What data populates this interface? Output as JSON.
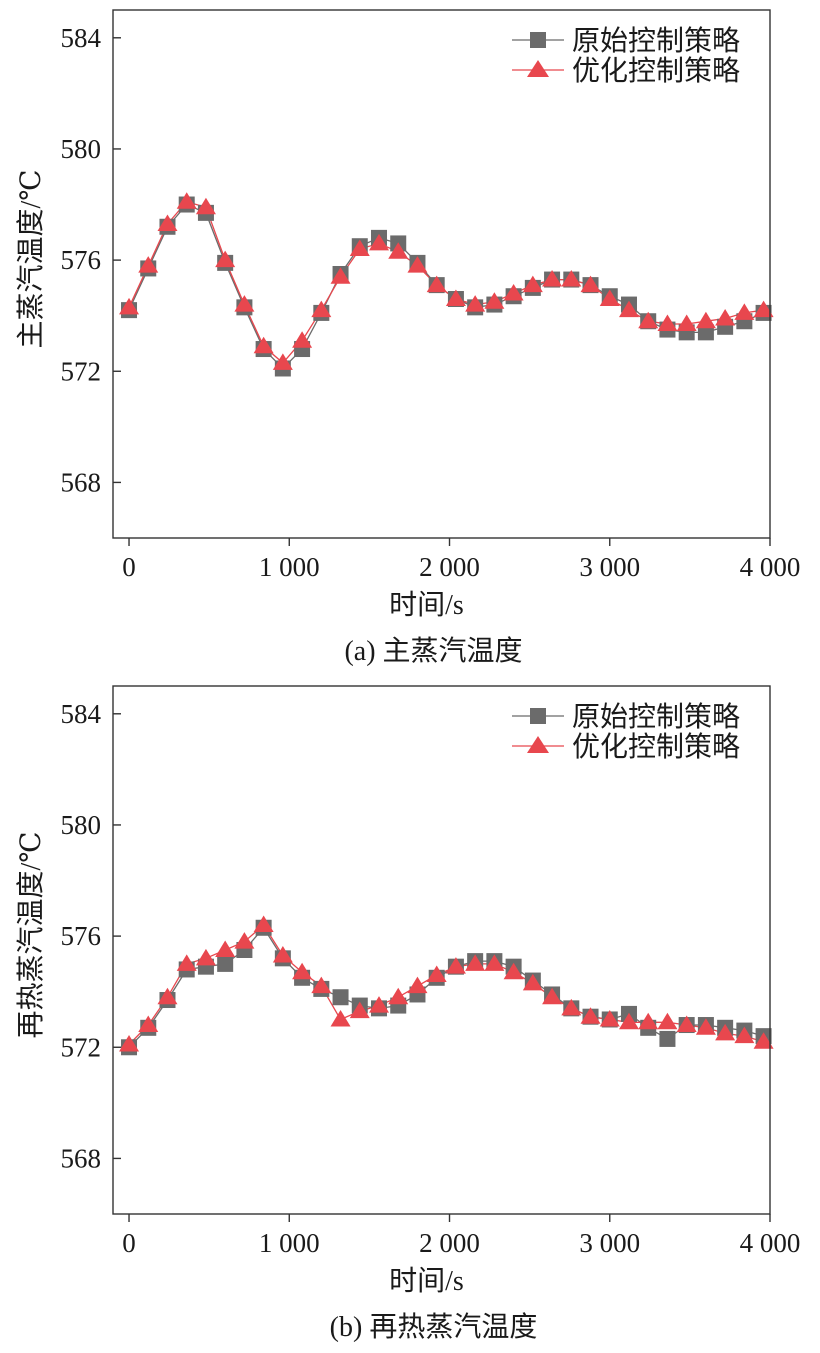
{
  "chart_data": [
    {
      "type": "line",
      "caption": "(a) 主蒸汽温度",
      "xlabel": "时间/s",
      "ylabel": "主蒸汽温度/℃",
      "xlim": [
        -100,
        4000
      ],
      "ylim": [
        566,
        585
      ],
      "xticks": [
        0,
        1000,
        2000,
        3000,
        4000
      ],
      "xtick_labels": [
        "0",
        "1 000",
        "2 000",
        "3 000",
        "4 000"
      ],
      "yticks": [
        568,
        572,
        576,
        580,
        584
      ],
      "ytick_labels": [
        "568",
        "572",
        "576",
        "580",
        "584"
      ],
      "legend_position": "top-right",
      "x": [
        0,
        120,
        240,
        360,
        480,
        600,
        720,
        840,
        960,
        1080,
        1200,
        1320,
        1440,
        1560,
        1680,
        1800,
        1920,
        2040,
        2160,
        2280,
        2400,
        2520,
        2640,
        2760,
        2880,
        3000,
        3120,
        3240,
        3360,
        3480,
        3600,
        3720,
        3840,
        3960
      ],
      "series": [
        {
          "name": "原始控制策略",
          "marker": "square",
          "color": "#6b6b6b",
          "values": [
            574.2,
            575.7,
            577.2,
            578.0,
            577.7,
            575.9,
            574.3,
            572.8,
            572.1,
            572.8,
            574.1,
            575.5,
            576.5,
            576.8,
            576.6,
            575.9,
            575.1,
            574.6,
            574.3,
            574.4,
            574.7,
            575.0,
            575.3,
            575.3,
            575.1,
            574.7,
            574.4,
            573.8,
            573.5,
            573.4,
            573.4,
            573.6,
            573.8,
            574.1
          ]
        },
        {
          "name": "优化控制策略",
          "marker": "triangle",
          "color": "#e8474e",
          "values": [
            574.3,
            575.8,
            577.3,
            578.1,
            577.9,
            576.0,
            574.4,
            572.9,
            572.3,
            573.1,
            574.2,
            575.4,
            576.4,
            576.6,
            576.3,
            575.8,
            575.1,
            574.6,
            574.4,
            574.5,
            574.8,
            575.1,
            575.3,
            575.3,
            575.1,
            574.6,
            574.2,
            573.8,
            573.7,
            573.7,
            573.8,
            573.9,
            574.1,
            574.2
          ]
        }
      ]
    },
    {
      "type": "line",
      "caption": "(b) 再热蒸汽温度",
      "xlabel": "时间/s",
      "ylabel": "再热蒸汽温度/℃",
      "xlim": [
        -100,
        4000
      ],
      "ylim": [
        566,
        585
      ],
      "xticks": [
        0,
        1000,
        2000,
        3000,
        4000
      ],
      "xtick_labels": [
        "0",
        "1 000",
        "2 000",
        "3 000",
        "4 000"
      ],
      "yticks": [
        568,
        572,
        576,
        580,
        584
      ],
      "ytick_labels": [
        "568",
        "572",
        "576",
        "580",
        "584"
      ],
      "legend_position": "top-right",
      "x": [
        0,
        120,
        240,
        360,
        480,
        600,
        720,
        840,
        960,
        1080,
        1200,
        1320,
        1440,
        1560,
        1680,
        1800,
        1920,
        2040,
        2160,
        2280,
        2400,
        2520,
        2640,
        2760,
        2880,
        3000,
        3120,
        3240,
        3360,
        3480,
        3600,
        3720,
        3840,
        3960
      ],
      "series": [
        {
          "name": "原始控制策略",
          "marker": "square",
          "color": "#6b6b6b",
          "values": [
            572.0,
            572.7,
            573.7,
            574.8,
            574.9,
            575.0,
            575.5,
            576.3,
            575.2,
            574.5,
            574.1,
            573.8,
            573.5,
            573.4,
            573.5,
            573.9,
            574.5,
            574.9,
            575.1,
            575.1,
            574.9,
            574.4,
            573.9,
            573.4,
            573.1,
            573.0,
            573.2,
            572.7,
            572.3,
            572.8,
            572.8,
            572.7,
            572.6,
            572.4
          ]
        },
        {
          "name": "优化控制策略",
          "marker": "triangle",
          "color": "#e8474e",
          "values": [
            572.1,
            572.8,
            573.8,
            575.0,
            575.2,
            575.5,
            575.8,
            576.4,
            575.3,
            574.7,
            574.2,
            573.0,
            573.3,
            573.5,
            573.8,
            574.2,
            574.6,
            574.9,
            575.0,
            575.0,
            574.7,
            574.3,
            573.8,
            573.4,
            573.1,
            573.0,
            572.9,
            572.9,
            572.9,
            572.8,
            572.7,
            572.5,
            572.4,
            572.2
          ]
        }
      ]
    }
  ]
}
